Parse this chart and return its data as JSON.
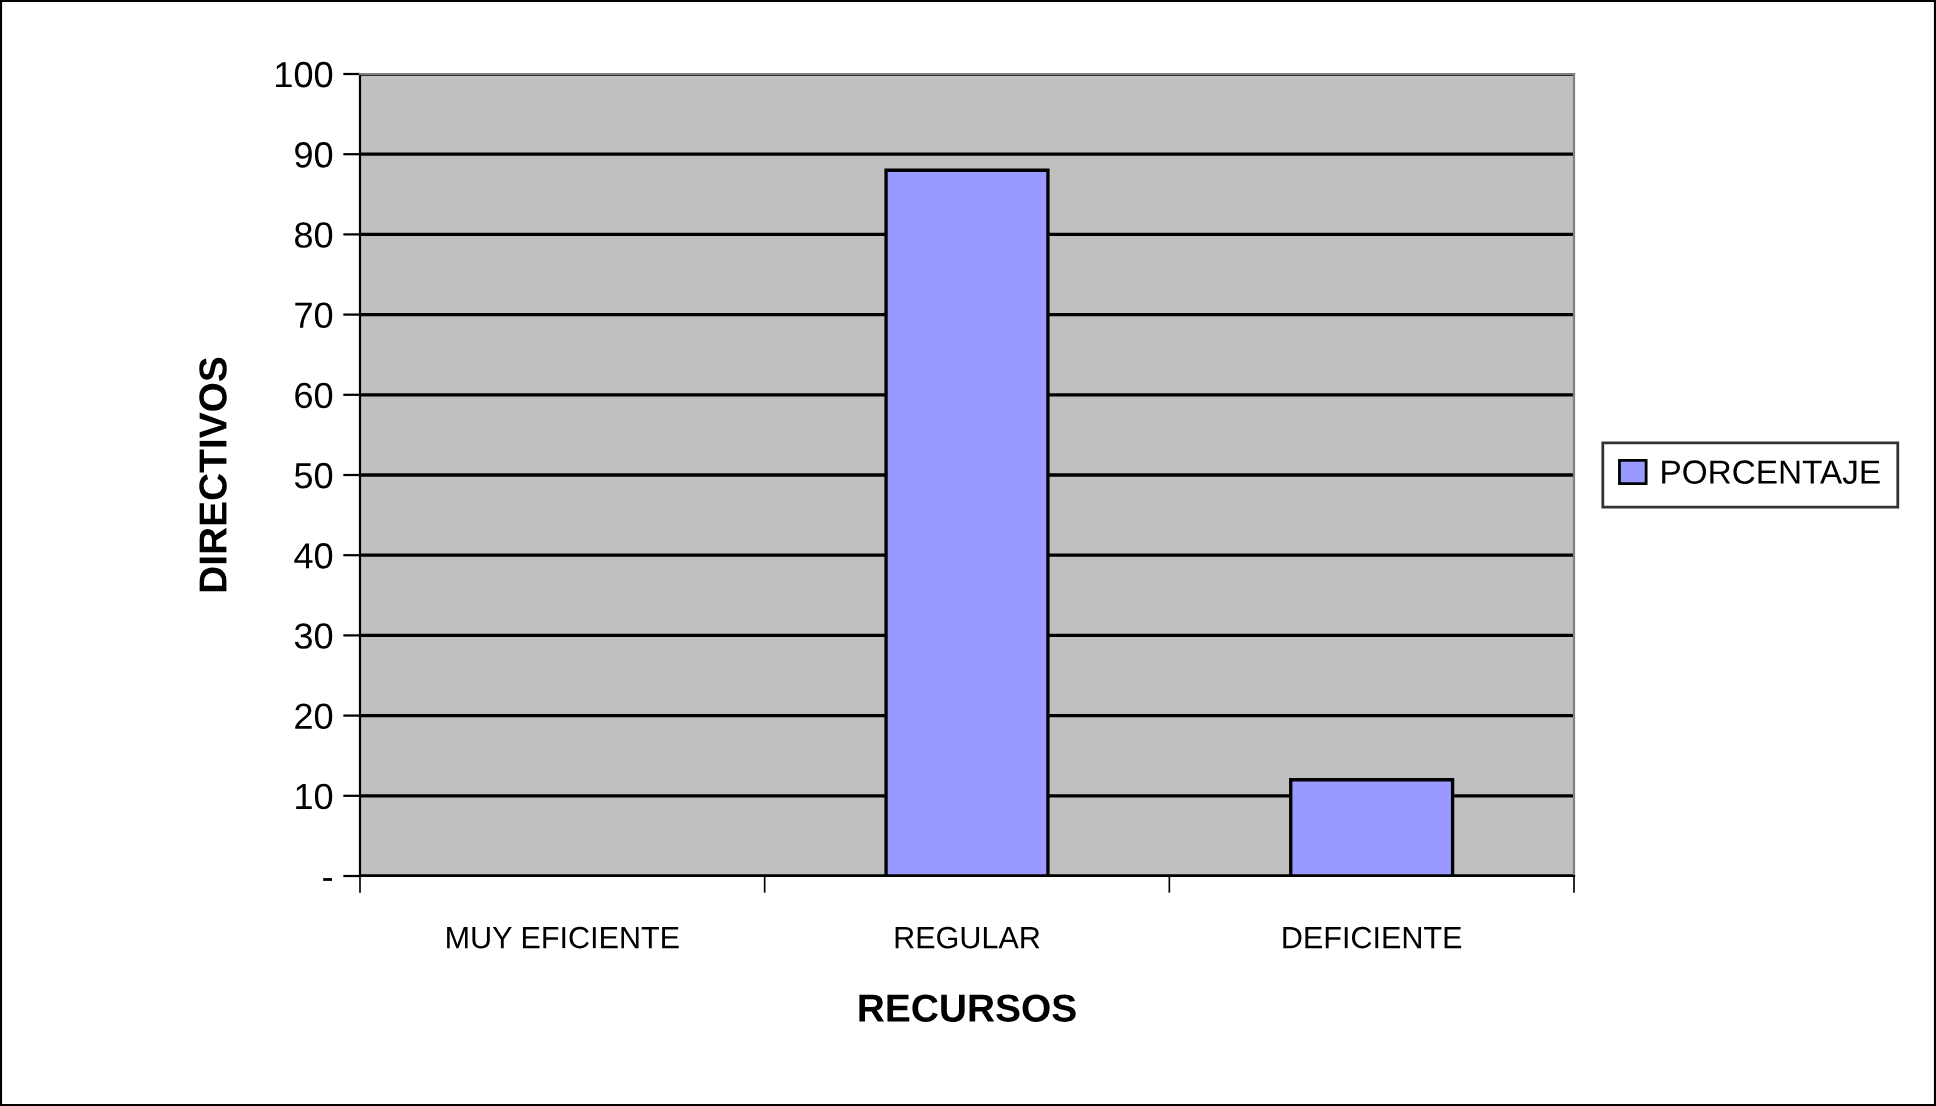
{
  "chart_data": {
    "type": "bar",
    "xlabel": "RECURSOS",
    "ylabel": "DIRECTIVOS",
    "categories": [
      "MUY EFICIENTE",
      "REGULAR",
      "DEFICIENTE"
    ],
    "series": [
      {
        "name": "PORCENTAJE",
        "color": "#9999ff",
        "values": [
          0,
          88,
          12
        ]
      }
    ],
    "ylim": [
      0,
      100
    ],
    "yticks": [
      {
        "value": 0,
        "label": "-"
      },
      10,
      20,
      30,
      40,
      50,
      60,
      70,
      80,
      90,
      100
    ],
    "grid": "y",
    "legend": "right"
  }
}
